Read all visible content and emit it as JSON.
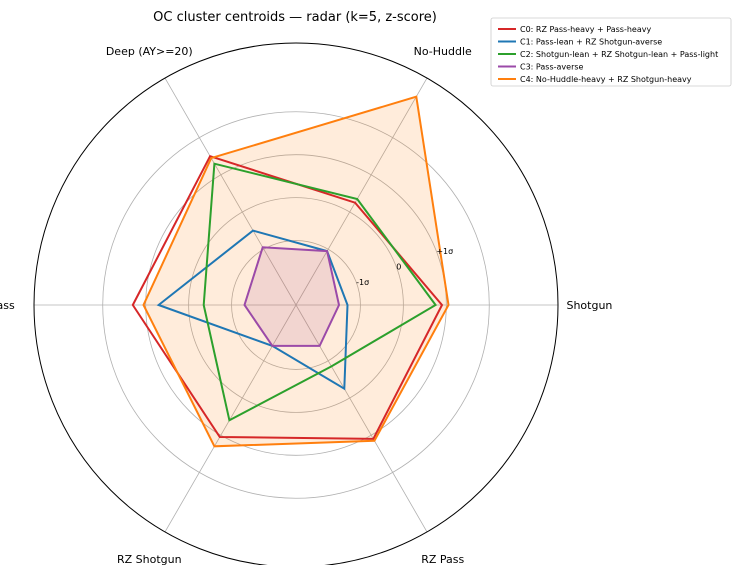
{
  "chart_data": {
    "type": "radar",
    "title": "OC cluster centroids — radar (k=5, z-score)",
    "axes": [
      "Shotgun",
      "No-Huddle",
      "Deep (AY>=20)",
      "Pass",
      "RZ Shotgun",
      "RZ Pass"
    ],
    "rlim": [
      -2.5,
      3.6
    ],
    "ring_values": [
      -1,
      0,
      1,
      2
    ],
    "ring_labels": [
      {
        "value": -1,
        "text": "-1σ"
      },
      {
        "value": 0,
        "text": "0"
      },
      {
        "value": 1,
        "text": "+1σ"
      }
    ],
    "grid": true,
    "legend_placement": "top-right outside",
    "series": [
      {
        "name": "C0: RZ Pass-heavy + Pass-heavy",
        "color": "#d62728",
        "fill": false,
        "values": [
          0.9,
          0.25,
          1.5,
          1.3,
          1.05,
          1.1
        ]
      },
      {
        "name": "C1: Pass-lean + RZ Shotgun-averse",
        "color": "#1f77b4",
        "fill": false,
        "values": [
          -1.3,
          -1.05,
          -0.5,
          0.7,
          -1.4,
          -0.25
        ]
      },
      {
        "name": "C2: Shotgun-lean + RZ Shotgun-lean + Pass-light",
        "color": "#2ca02c",
        "fill": false,
        "values": [
          0.75,
          0.35,
          1.3,
          -0.35,
          0.6,
          -0.85
        ]
      },
      {
        "name": "C3: Pass-averse",
        "color": "#9b4aa8",
        "fill": true,
        "values": [
          -1.5,
          -1.05,
          -0.95,
          -1.3,
          -1.4,
          -1.4
        ]
      },
      {
        "name": "C4: No-Huddle-heavy + RZ Shotgun-heavy",
        "color": "#ff7f0e",
        "fill": true,
        "values": [
          1.05,
          3.1,
          1.45,
          1.05,
          1.3,
          1.15
        ]
      }
    ]
  }
}
